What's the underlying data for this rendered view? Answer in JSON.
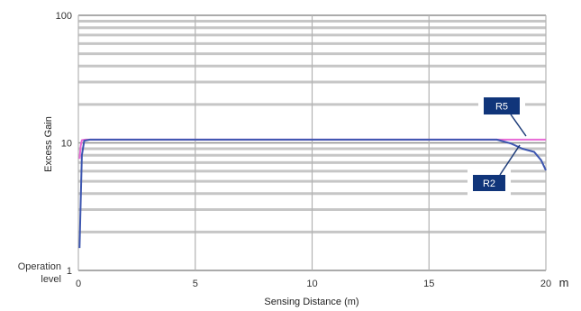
{
  "chart_data": {
    "type": "line",
    "xlabel": "Sensing Distance (m)",
    "ylabel": "Excess Gain",
    "x_unit": "m",
    "xlim": [
      0,
      20
    ],
    "ylim": [
      1,
      100
    ],
    "y_scale": "log",
    "x_ticks": [
      "0",
      "5",
      "10",
      "15",
      "20"
    ],
    "y_ticks": [
      "1",
      "10",
      "100"
    ],
    "y_extra_label": "Operation level",
    "y_extra_label_lines": [
      "Operation",
      "level"
    ],
    "grid": true,
    "series": [
      {
        "name": "R5",
        "color": "#e86ad6",
        "points": [
          [
            0.05,
            7.5
          ],
          [
            0.1,
            9.5
          ],
          [
            0.15,
            10.5
          ],
          [
            0.3,
            10.6
          ],
          [
            5,
            10.6
          ],
          [
            10,
            10.6
          ],
          [
            15,
            10.6
          ],
          [
            18,
            10.6
          ],
          [
            20,
            10.6
          ]
        ]
      },
      {
        "name": "R2",
        "color": "#3d56b0",
        "points": [
          [
            0.05,
            1.5
          ],
          [
            0.1,
            3.5
          ],
          [
            0.15,
            8
          ],
          [
            0.25,
            10.4
          ],
          [
            0.5,
            10.6
          ],
          [
            5,
            10.6
          ],
          [
            10,
            10.6
          ],
          [
            15,
            10.6
          ],
          [
            17.9,
            10.6
          ],
          [
            18.5,
            9.9
          ],
          [
            19,
            9
          ],
          [
            19.5,
            8.5
          ],
          [
            19.8,
            7.3
          ],
          [
            20,
            6.1
          ]
        ]
      }
    ],
    "callouts": [
      {
        "label": "R5",
        "series": "R5"
      },
      {
        "label": "R2",
        "series": "R2"
      }
    ]
  }
}
